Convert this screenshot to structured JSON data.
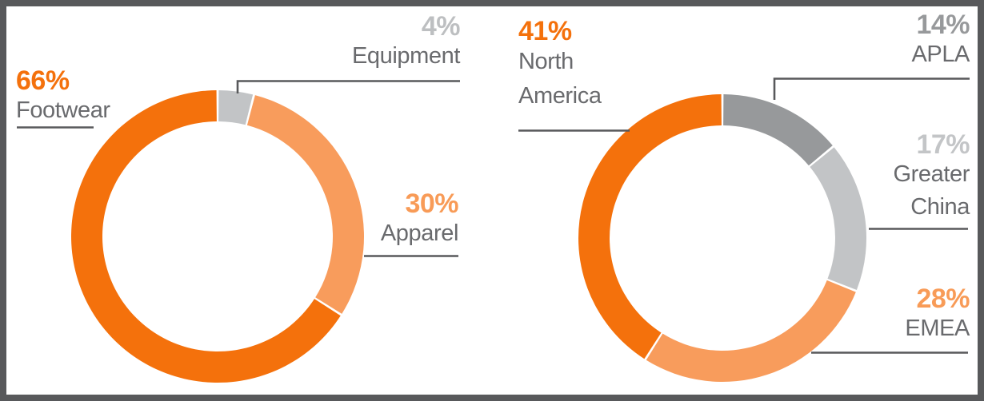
{
  "frame": {
    "border_color": "#58595B",
    "background_color": "#FFFFFF"
  },
  "colors": {
    "primary_orange": "#F4710C",
    "light_orange": "#F89C5C",
    "light_gray": "#C2C4C6",
    "dark_gray": "#97999B",
    "category_text_gray": "#696A6D",
    "leader_line_gray": "#58595B"
  },
  "chart_data": [
    {
      "type": "donut",
      "id": "product-mix-donut",
      "title": "",
      "start_angle_deg": 0,
      "direction": "clockwise",
      "slices": [
        {
          "label": "Equipment",
          "pct_label": "4%",
          "value": 4,
          "color": "#C2C4C6",
          "pct_color": "#BDBFC1"
        },
        {
          "label": "Apparel",
          "pct_label": "30%",
          "value": 30,
          "color": "#F89C5C",
          "pct_color": "#F89B57"
        },
        {
          "label": "Footwear",
          "pct_label": "66%",
          "value": 66,
          "color": "#F4710C",
          "pct_color": "#F4710C"
        }
      ]
    },
    {
      "type": "donut",
      "id": "region-mix-donut",
      "title": "",
      "start_angle_deg": 0,
      "direction": "clockwise",
      "slices": [
        {
          "label": "APLA",
          "pct_label": "14%",
          "value": 14,
          "color": "#97999B",
          "pct_color": "#97999B"
        },
        {
          "label": "Greater China",
          "pct_label": "17%",
          "value": 17,
          "color": "#C2C4C6",
          "pct_color": "#C3C5C7"
        },
        {
          "label": "EMEA",
          "pct_label": "28%",
          "value": 28,
          "color": "#F89C5C",
          "pct_color": "#F89B57"
        },
        {
          "label": "North America",
          "pct_label": "41%",
          "value": 41,
          "color": "#F4710C",
          "pct_color": "#F4710C"
        }
      ]
    }
  ]
}
